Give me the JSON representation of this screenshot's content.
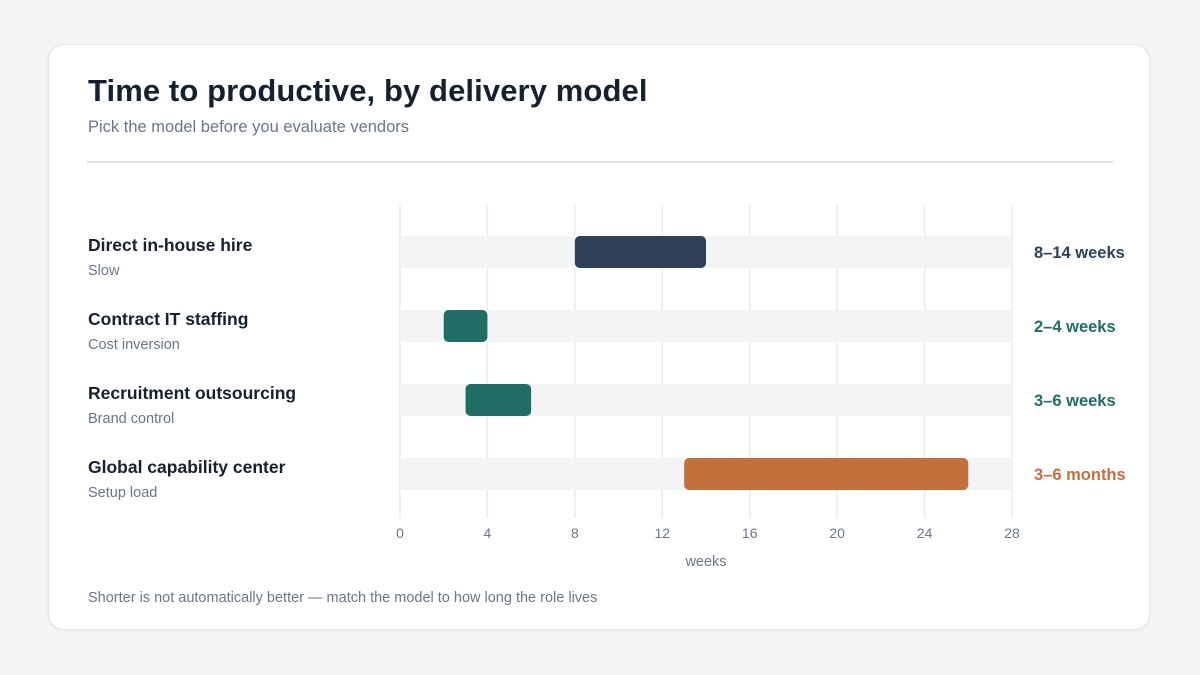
{
  "header": {
    "title": "Time to productive, by delivery model",
    "subtitle": "Pick the model before you evaluate vendors"
  },
  "footnote": "Shorter is not automatically better — match the model to how long the role lives",
  "colors": {
    "navy": "#2f4159",
    "teal": "#206d66",
    "orange": "#c2703e",
    "track": "#f3f4f6",
    "grid": "#e9ebee"
  },
  "chart_data": {
    "type": "range-bar",
    "xlabel": "weeks",
    "xlim": [
      0,
      28
    ],
    "xticks": [
      0,
      4,
      8,
      12,
      16,
      20,
      24,
      28
    ],
    "grid": true,
    "series": [
      {
        "label": "Direct in-house hire",
        "note": "Slow",
        "start": 8,
        "end": 14,
        "range_label": "8–14 weeks",
        "color": "#2f4159"
      },
      {
        "label": "Contract IT staffing",
        "note": "Cost inversion",
        "start": 2,
        "end": 4,
        "range_label": "2–4 weeks",
        "color": "#206d66"
      },
      {
        "label": "Recruitment outsourcing",
        "note": "Brand control",
        "start": 3,
        "end": 6,
        "range_label": "3–6 weeks",
        "color": "#206d66"
      },
      {
        "label": "Global capability center",
        "note": "Setup load",
        "start": 13,
        "end": 26,
        "range_label": "3–6 months",
        "color": "#c2703e"
      }
    ]
  }
}
